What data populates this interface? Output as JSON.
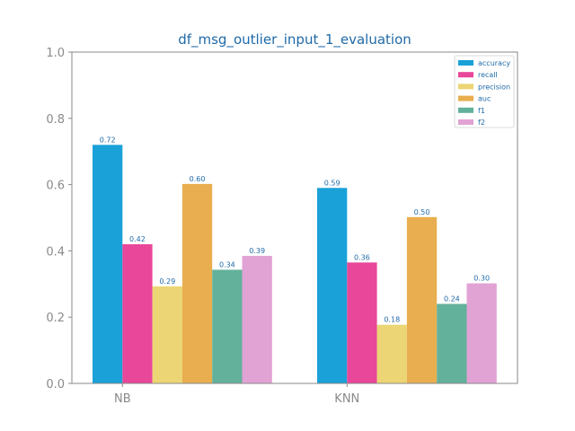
{
  "chart_data": {
    "type": "bar",
    "title": "df_msg_outlier_input_1_evaluation",
    "xlabel": "",
    "ylabel": "",
    "ylim": [
      0,
      1.0
    ],
    "yticks": [
      "0.0",
      "0.2",
      "0.4",
      "0.6",
      "0.8",
      "1.0"
    ],
    "categories": [
      "NB",
      "KNN"
    ],
    "series": [
      {
        "name": "accuracy",
        "color": "#1aa1d8",
        "values": [
          0.72,
          0.59
        ],
        "labels": [
          "0.72",
          "0.59"
        ]
      },
      {
        "name": "recall",
        "color": "#e8479a",
        "values": [
          0.42,
          0.365
        ],
        "labels": [
          "0.42",
          "0.36"
        ]
      },
      {
        "name": "precision",
        "color": "#ecd574",
        "values": [
          0.293,
          0.177
        ],
        "labels": [
          "0.29",
          "0.18"
        ]
      },
      {
        "name": "auc",
        "color": "#e8ae4f",
        "values": [
          0.602,
          0.502
        ],
        "labels": [
          "0.60",
          "0.50"
        ]
      },
      {
        "name": "f1",
        "color": "#63b19b",
        "values": [
          0.343,
          0.24
        ],
        "labels": [
          "0.34",
          "0.24"
        ]
      },
      {
        "name": "f2",
        "color": "#e1a2d4",
        "values": [
          0.385,
          0.302
        ],
        "labels": [
          "0.39",
          "0.30"
        ]
      }
    ],
    "legend": "top-right",
    "grid": false
  }
}
